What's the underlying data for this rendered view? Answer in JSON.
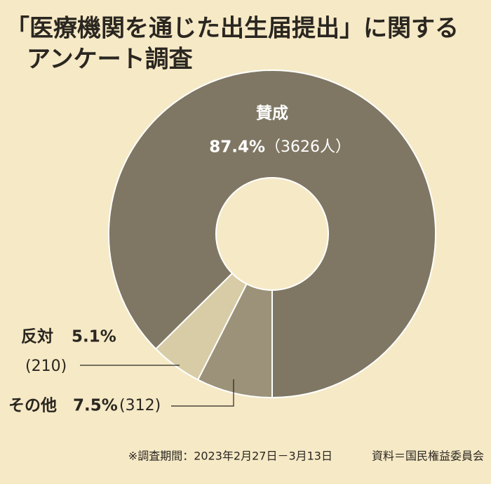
{
  "chart_data": {
    "type": "donut",
    "title_lines": [
      "「医療機関を通じた出生届提出」に関する",
      "アンケート調査"
    ],
    "categories": [
      "賛成",
      "反対",
      "その他"
    ],
    "values": [
      87.4,
      5.1,
      7.5
    ],
    "value_labels": [
      "87.4%",
      "5.1%",
      "7.5%"
    ],
    "count_labels": [
      "（3626人）",
      "(210)",
      "(312)"
    ],
    "colors": [
      "#7f7763",
      "#d7cca6",
      "#9b9279"
    ],
    "notes": [
      "※調査期間：2023年2月27日－3月13日",
      "資料＝国民権益委員会"
    ]
  }
}
